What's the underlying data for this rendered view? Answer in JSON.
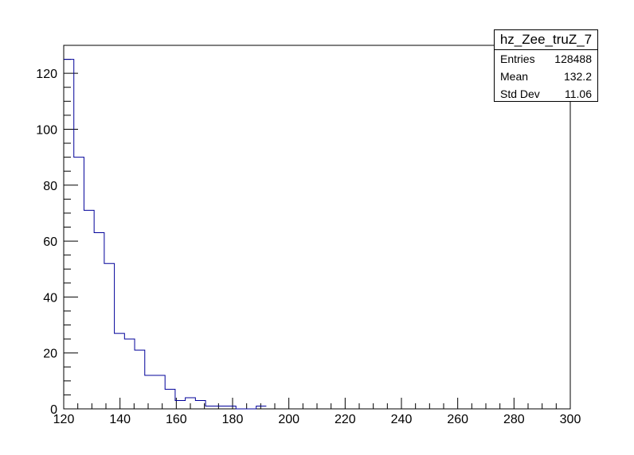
{
  "chart_data": {
    "type": "histogram",
    "title": "",
    "xlabel": "",
    "ylabel": "",
    "xlim": [
      120,
      300
    ],
    "ylim": [
      0,
      130
    ],
    "bin_width": 3.6,
    "bin_edges_start": 120,
    "values": [
      125,
      90,
      71,
      63,
      52,
      27,
      25,
      21,
      12,
      12,
      7,
      3,
      4,
      3,
      1,
      1,
      1,
      0,
      0,
      1
    ],
    "x_ticks": [
      120,
      140,
      160,
      180,
      200,
      220,
      240,
      260,
      280,
      300
    ],
    "y_ticks": [
      0,
      20,
      40,
      60,
      80,
      100,
      120
    ],
    "line_color": "#000099",
    "grid": false,
    "legend": "none",
    "stats_box": {
      "name": "hz_Zee_truZ_7",
      "rows": [
        {
          "label": "Entries",
          "value": "128488"
        },
        {
          "label": "Mean",
          "value": "132.2"
        },
        {
          "label": "Std Dev",
          "value": "11.06"
        }
      ]
    }
  }
}
